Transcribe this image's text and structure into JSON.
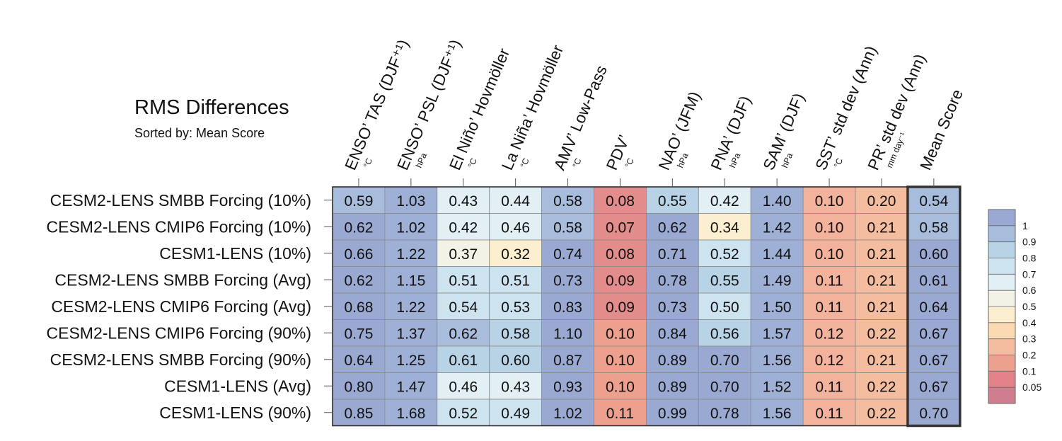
{
  "header": {
    "title": "RMS Differences",
    "subtitle": "Sorted by: Mean Score"
  },
  "chart_data": {
    "type": "heatmap",
    "title": "RMS Differences",
    "subtitle": "Sorted by: Mean Score",
    "columns": [
      {
        "label": "ENSO’ TAS (DJF⁺¹)",
        "unit": "°C"
      },
      {
        "label": "ENSO’ PSL (DJF⁺¹)",
        "unit": "hPa"
      },
      {
        "label": "El Niño’ Hovmöller",
        "unit": "°C"
      },
      {
        "label": "La Niña’ Hovmöller",
        "unit": "°C"
      },
      {
        "label": "AMV’ Low-Pass",
        "unit": "°C"
      },
      {
        "label": "PDV’",
        "unit": "°C"
      },
      {
        "label": "NAO’ (JFM)",
        "unit": "hPa"
      },
      {
        "label": "PNA’ (DJF)",
        "unit": "hPa"
      },
      {
        "label": "SAM’ (DJF)",
        "unit": "hPa"
      },
      {
        "label": "SST’ std dev (Ann)",
        "unit": "°C"
      },
      {
        "label": "PR’ std dev (Ann)",
        "unit": "mm day⁻¹"
      },
      {
        "label": "Mean Score",
        "unit": ""
      }
    ],
    "rows": [
      "CESM2-LENS SMBB Forcing (10%)",
      "CESM2-LENS CMIP6 Forcing (10%)",
      "CESM1-LENS (10%)",
      "CESM2-LENS SMBB Forcing (Avg)",
      "CESM2-LENS CMIP6 Forcing (Avg)",
      "CESM2-LENS CMIP6 Forcing (90%)",
      "CESM2-LENS SMBB Forcing (90%)",
      "CESM1-LENS (Avg)",
      "CESM1-LENS (90%)"
    ],
    "values": [
      [
        "0.59",
        "1.03",
        "0.43",
        "0.44",
        "0.58",
        "0.08",
        "0.55",
        "0.42",
        "1.40",
        "0.10",
        "0.20",
        "0.54"
      ],
      [
        "0.62",
        "1.02",
        "0.42",
        "0.46",
        "0.58",
        "0.07",
        "0.62",
        "0.34",
        "1.42",
        "0.10",
        "0.21",
        "0.58"
      ],
      [
        "0.66",
        "1.22",
        "0.37",
        "0.32",
        "0.74",
        "0.08",
        "0.71",
        "0.52",
        "1.44",
        "0.10",
        "0.21",
        "0.60"
      ],
      [
        "0.62",
        "1.15",
        "0.51",
        "0.51",
        "0.73",
        "0.09",
        "0.78",
        "0.55",
        "1.49",
        "0.11",
        "0.21",
        "0.61"
      ],
      [
        "0.68",
        "1.22",
        "0.54",
        "0.53",
        "0.83",
        "0.09",
        "0.73",
        "0.50",
        "1.50",
        "0.11",
        "0.21",
        "0.64"
      ],
      [
        "0.75",
        "1.37",
        "0.62",
        "0.58",
        "1.10",
        "0.10",
        "0.84",
        "0.56",
        "1.57",
        "0.12",
        "0.22",
        "0.67"
      ],
      [
        "0.64",
        "1.25",
        "0.61",
        "0.60",
        "0.87",
        "0.10",
        "0.89",
        "0.70",
        "1.56",
        "0.12",
        "0.21",
        "0.67"
      ],
      [
        "0.80",
        "1.47",
        "0.46",
        "0.43",
        "0.93",
        "0.10",
        "0.89",
        "0.70",
        "1.52",
        "0.11",
        "0.22",
        "0.67"
      ],
      [
        "0.85",
        "1.68",
        "0.52",
        "0.49",
        "1.02",
        "0.11",
        "0.99",
        "0.78",
        "1.56",
        "0.11",
        "0.22",
        "0.70"
      ]
    ],
    "colorbar": {
      "labels": [
        "1",
        "0.9",
        "0.8",
        "0.7",
        "0.6",
        "0.5",
        "0.4",
        "0.3",
        "0.2",
        "0.1",
        "0.05"
      ],
      "levels": [
        1.0,
        0.9,
        0.8,
        0.7,
        0.6,
        0.5,
        0.4,
        0.3,
        0.2,
        0.1,
        0.05
      ],
      "colors": [
        "#9aa9d2",
        "#a8bddb",
        "#b9d3e6",
        "#cde3ef",
        "#e2eff4",
        "#f3f2e6",
        "#fbefcf",
        "#fbd9b3",
        "#f5bda0",
        "#eea08f",
        "#e2838a",
        "#cf7d8f"
      ]
    },
    "grid": true
  }
}
